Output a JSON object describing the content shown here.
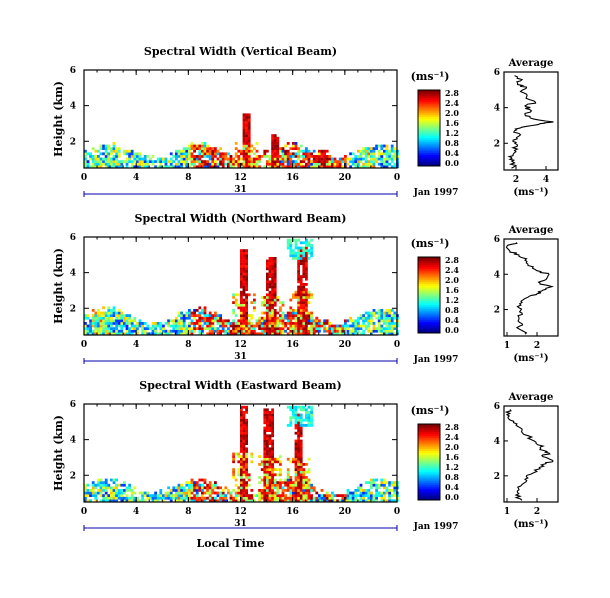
{
  "xaxis_label": "Local Time",
  "unit_label": "(ms⁻¹)",
  "height_label": "Height (km)",
  "date_label": "Jan 1997",
  "day_label": "31",
  "average_title": "Average",
  "chart_data": [
    {
      "type": "heatmap",
      "title": "Spectral Width (Vertical Beam)",
      "xlabel": "Local Time",
      "ylabel": "Height (km)",
      "xticks": [
        "0",
        "4",
        "8",
        "12",
        "16",
        "20",
        "0"
      ],
      "yticks": [
        "2",
        "4",
        "6"
      ],
      "xlim": [
        0,
        24
      ],
      "ylim": [
        0.5,
        6
      ],
      "colorbar": {
        "label": "(ms⁻¹)",
        "ticks": [
          "0.0",
          "0.4",
          "0.8",
          "1.2",
          "1.6",
          "2.0",
          "2.4",
          "2.8"
        ]
      },
      "profile": {
        "title": "Average",
        "xlabel": "(ms⁻¹)",
        "xticks": [
          "2",
          "4"
        ],
        "xlim": [
          1.2,
          4.8
        ],
        "yticks": [
          "2",
          "4",
          "6"
        ],
        "ylim": [
          0.5,
          6
        ],
        "points": [
          [
            1.7,
            0.6
          ],
          [
            1.9,
            0.9
          ],
          [
            1.6,
            1.1
          ],
          [
            1.8,
            1.3
          ],
          [
            1.9,
            1.6
          ],
          [
            2.1,
            1.9
          ],
          [
            1.8,
            2.1
          ],
          [
            2.2,
            2.4
          ],
          [
            1.9,
            2.7
          ],
          [
            2.4,
            2.9
          ],
          [
            3.6,
            3.1
          ],
          [
            4.5,
            3.2
          ],
          [
            3.0,
            3.4
          ],
          [
            2.6,
            3.6
          ],
          [
            2.9,
            3.9
          ],
          [
            2.6,
            4.1
          ],
          [
            3.3,
            4.3
          ],
          [
            2.7,
            4.6
          ],
          [
            2.3,
            4.9
          ],
          [
            2.7,
            5.1
          ],
          [
            2.1,
            5.3
          ],
          [
            2.3,
            5.5
          ],
          [
            1.9,
            5.8
          ]
        ]
      }
    },
    {
      "type": "heatmap",
      "title": "Spectral Width (Northward Beam)",
      "xlabel": "Local Time",
      "ylabel": "Height (km)",
      "xticks": [
        "0",
        "4",
        "8",
        "12",
        "16",
        "20",
        "0"
      ],
      "yticks": [
        "2",
        "4",
        "6"
      ],
      "xlim": [
        0,
        24
      ],
      "ylim": [
        0.5,
        6
      ],
      "colorbar": {
        "label": "(ms⁻¹)",
        "ticks": [
          "0.0",
          "0.4",
          "0.8",
          "1.2",
          "1.6",
          "2.0",
          "2.4",
          "2.8"
        ]
      },
      "profile": {
        "title": "Average",
        "xlabel": "(ms⁻¹)",
        "xticks": [
          "1",
          "2"
        ],
        "xlim": [
          0.9,
          2.7
        ],
        "yticks": [
          "2",
          "4",
          "6"
        ],
        "ylim": [
          0.5,
          6
        ],
        "points": [
          [
            1.6,
            0.6
          ],
          [
            1.4,
            0.9
          ],
          [
            1.5,
            1.2
          ],
          [
            1.4,
            1.5
          ],
          [
            1.5,
            1.8
          ],
          [
            1.4,
            2.1
          ],
          [
            1.5,
            2.4
          ],
          [
            1.7,
            2.7
          ],
          [
            2.0,
            2.9
          ],
          [
            2.2,
            3.1
          ],
          [
            2.5,
            3.3
          ],
          [
            2.1,
            3.5
          ],
          [
            2.3,
            3.7
          ],
          [
            2.4,
            4.0
          ],
          [
            2.0,
            4.2
          ],
          [
            1.7,
            4.5
          ],
          [
            1.6,
            4.8
          ],
          [
            1.4,
            5.1
          ],
          [
            1.1,
            5.3
          ],
          [
            1.0,
            5.6
          ],
          [
            1.3,
            5.8
          ]
        ]
      }
    },
    {
      "type": "heatmap",
      "title": "Spectral Width (Eastward Beam)",
      "xlabel": "Local Time",
      "ylabel": "Height (km)",
      "xticks": [
        "0",
        "4",
        "8",
        "12",
        "16",
        "20",
        "0"
      ],
      "yticks": [
        "2",
        "4",
        "6"
      ],
      "xlim": [
        0,
        24
      ],
      "ylim": [
        0.5,
        6
      ],
      "colorbar": {
        "label": "(ms⁻¹)",
        "ticks": [
          "0.0",
          "0.4",
          "0.8",
          "1.2",
          "1.6",
          "2.0",
          "2.4",
          "2.8"
        ]
      },
      "profile": {
        "title": "Average",
        "xlabel": "(ms⁻¹)",
        "xticks": [
          "1",
          "2"
        ],
        "xlim": [
          0.9,
          2.7
        ],
        "yticks": [
          "2",
          "4",
          "6"
        ],
        "ylim": [
          0.5,
          6
        ],
        "points": [
          [
            1.5,
            0.6
          ],
          [
            1.3,
            0.9
          ],
          [
            1.4,
            1.2
          ],
          [
            1.5,
            1.5
          ],
          [
            1.6,
            1.8
          ],
          [
            1.8,
            2.1
          ],
          [
            2.1,
            2.4
          ],
          [
            2.3,
            2.7
          ],
          [
            2.5,
            2.9
          ],
          [
            2.2,
            3.1
          ],
          [
            2.4,
            3.3
          ],
          [
            2.1,
            3.5
          ],
          [
            2.2,
            3.7
          ],
          [
            1.9,
            4.0
          ],
          [
            1.7,
            4.3
          ],
          [
            1.5,
            4.6
          ],
          [
            1.3,
            4.9
          ],
          [
            1.1,
            5.2
          ],
          [
            1.0,
            5.5
          ],
          [
            1.1,
            5.8
          ]
        ]
      }
    }
  ]
}
